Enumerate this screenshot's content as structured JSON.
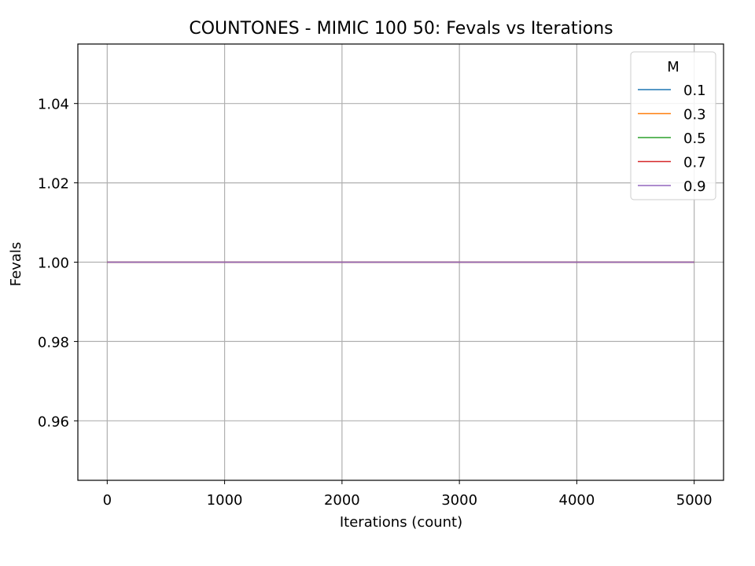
{
  "chart_data": {
    "type": "line",
    "title": "COUNTONES - MIMIC 100 50: Fevals vs Iterations",
    "xlabel": "Iterations (count)",
    "ylabel": "Fevals",
    "xlim": [
      -250,
      5250
    ],
    "ylim": [
      0.945,
      1.055
    ],
    "xticks": [
      0,
      1000,
      2000,
      3000,
      4000,
      5000
    ],
    "xtick_labels": [
      "0",
      "1000",
      "2000",
      "3000",
      "4000",
      "5000"
    ],
    "yticks": [
      0.96,
      0.98,
      1.0,
      1.02,
      1.04
    ],
    "ytick_labels": [
      "0.96",
      "0.98",
      "1.00",
      "1.02",
      "1.04"
    ],
    "grid": true,
    "legend": {
      "title": "M",
      "position": "top-right"
    },
    "x": [
      0,
      5000
    ],
    "series": [
      {
        "name": "0.1",
        "color": "#1f77b4",
        "values": [
          1.0,
          1.0
        ]
      },
      {
        "name": "0.3",
        "color": "#ff7f0e",
        "values": [
          1.0,
          1.0
        ]
      },
      {
        "name": "0.5",
        "color": "#2ca02c",
        "values": [
          1.0,
          1.0
        ]
      },
      {
        "name": "0.7",
        "color": "#d62728",
        "values": [
          1.0,
          1.0
        ]
      },
      {
        "name": "0.9",
        "color": "#9467bd",
        "values": [
          1.0,
          1.0
        ]
      }
    ]
  }
}
